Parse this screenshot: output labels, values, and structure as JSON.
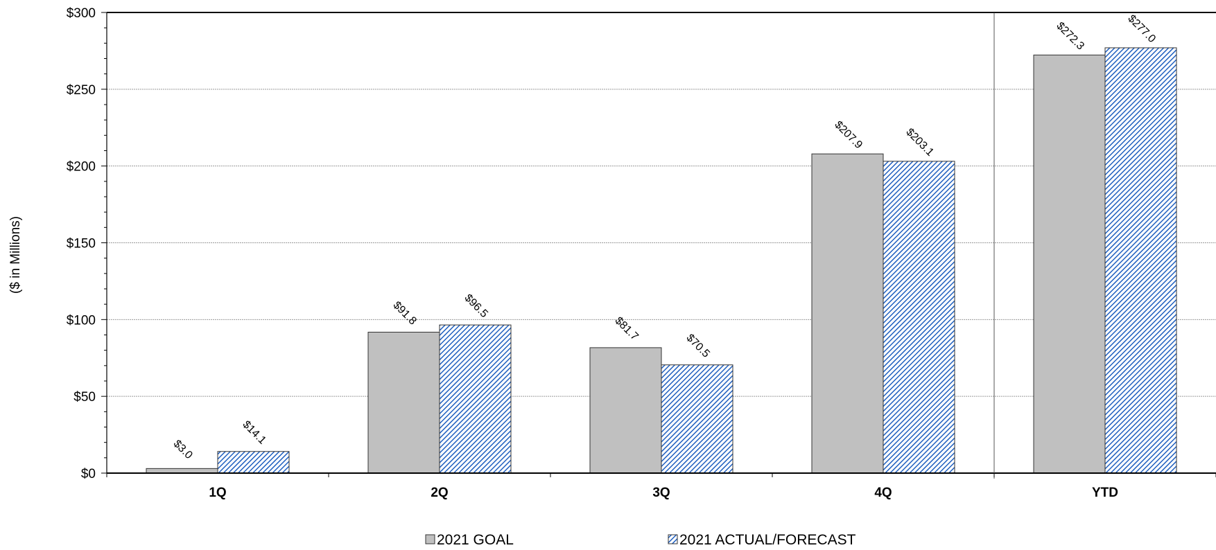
{
  "chart_data": {
    "type": "bar",
    "title": "",
    "xlabel": "",
    "ylabel": "($ in Millions)",
    "categories": [
      "1Q",
      "2Q",
      "3Q",
      "4Q",
      "YTD"
    ],
    "series": [
      {
        "name": "2021 GOAL",
        "values": [
          3.0,
          91.8,
          81.7,
          207.9,
          272.3
        ],
        "labels": [
          "$3.0",
          "$91.8",
          "$81.7",
          "$207.9",
          "$272.3"
        ]
      },
      {
        "name": "2021 ACTUAL/FORECAST",
        "values": [
          14.1,
          96.5,
          70.5,
          203.1,
          277.0
        ],
        "labels": [
          "$14.1",
          "$96.5",
          "$70.5",
          "$203.1",
          "$277.0"
        ]
      }
    ],
    "ylim": [
      0,
      300
    ],
    "yticks": [
      0,
      50,
      100,
      150,
      200,
      250,
      300
    ],
    "ytick_labels": [
      "$0",
      "$50",
      "$100",
      "$150",
      "$200",
      "$250",
      "$300"
    ],
    "grid": true,
    "legend": "bottom",
    "colors": {
      "goal_fill": "#c0c0c0",
      "actual_hatch": "#1f5fbf",
      "bar_stroke": "#333333",
      "grid": "#999999"
    }
  }
}
